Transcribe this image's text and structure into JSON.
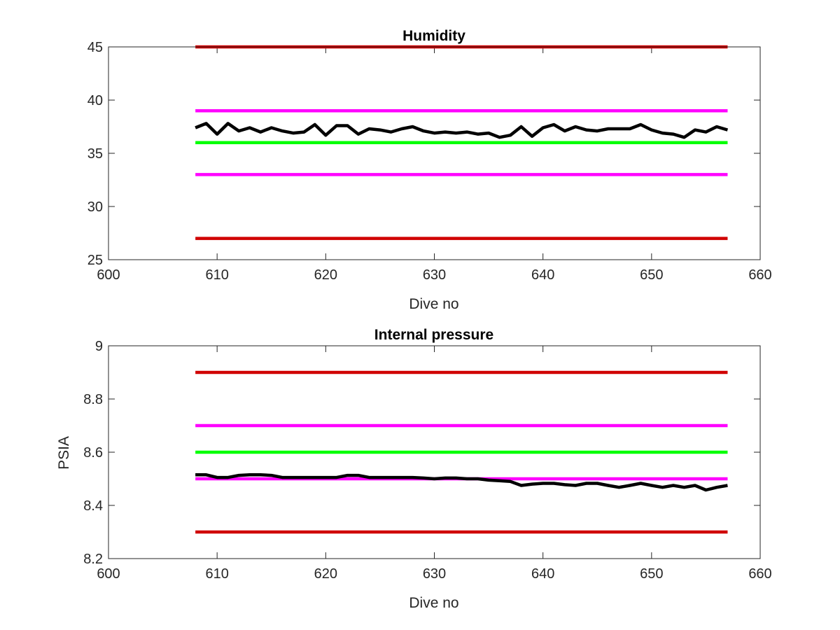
{
  "chart_data": [
    {
      "type": "line",
      "title": "Humidity",
      "xlabel": "Dive no",
      "ylabel": "",
      "xlim": [
        600,
        660
      ],
      "ylim": [
        25,
        45
      ],
      "xticks": [
        600,
        610,
        620,
        630,
        640,
        650,
        660
      ],
      "yticks": [
        25,
        30,
        35,
        40,
        45
      ],
      "xtick_labels": [
        "600",
        "610",
        "620",
        "630",
        "640",
        "650",
        "660"
      ],
      "ytick_labels": [
        "25",
        "30",
        "35",
        "40",
        "45"
      ],
      "grid": false,
      "colors": {
        "red": "#d00000",
        "magenta": "#ff00ff",
        "green": "#00ff00",
        "black": "#000000"
      },
      "thresholds": [
        {
          "value": 45,
          "x": [
            608,
            657
          ],
          "color": "#d00000"
        },
        {
          "value": 39,
          "x": [
            608,
            657
          ],
          "color": "#ff00ff"
        },
        {
          "value": 36,
          "x": [
            608,
            657
          ],
          "color": "#00ff00"
        },
        {
          "value": 33,
          "x": [
            608,
            657
          ],
          "color": "#ff00ff"
        },
        {
          "value": 27,
          "x": [
            608,
            657
          ],
          "color": "#d00000"
        }
      ],
      "series": [
        {
          "color": "#000000",
          "x": [
            608,
            609,
            610,
            611,
            612,
            613,
            614,
            615,
            616,
            617,
            618,
            619,
            620,
            621,
            622,
            623,
            624,
            625,
            626,
            627,
            628,
            629,
            630,
            631,
            632,
            633,
            634,
            635,
            636,
            637,
            638,
            639,
            640,
            641,
            642,
            643,
            644,
            645,
            646,
            647,
            648,
            649,
            650,
            651,
            652,
            653,
            654,
            655,
            656,
            657
          ],
          "y": [
            37.4,
            37.8,
            36.8,
            37.8,
            37.1,
            37.4,
            37.0,
            37.4,
            37.1,
            36.9,
            37.0,
            37.7,
            36.7,
            37.6,
            37.6,
            36.8,
            37.3,
            37.2,
            37.0,
            37.3,
            37.5,
            37.1,
            36.9,
            37.0,
            36.9,
            37.0,
            36.8,
            36.9,
            36.5,
            36.7,
            37.5,
            36.6,
            37.4,
            37.7,
            37.1,
            37.5,
            37.2,
            37.1,
            37.3,
            37.3,
            37.3,
            37.7,
            37.2,
            36.9,
            36.8,
            36.5,
            37.2,
            37.0,
            37.5,
            37.2
          ]
        }
      ]
    },
    {
      "type": "line",
      "title": "Internal pressure",
      "xlabel": "Dive no",
      "ylabel": "PSIA",
      "xlim": [
        600,
        660
      ],
      "ylim": [
        8.2,
        9.0
      ],
      "xticks": [
        600,
        610,
        620,
        630,
        640,
        650,
        660
      ],
      "yticks": [
        8.2,
        8.4,
        8.6,
        8.8,
        9.0
      ],
      "xtick_labels": [
        "600",
        "610",
        "620",
        "630",
        "640",
        "650",
        "660"
      ],
      "ytick_labels": [
        "8.2",
        "8.4",
        "8.6",
        "8.8",
        "9"
      ],
      "grid": false,
      "colors": {
        "red": "#d00000",
        "magenta": "#ff00ff",
        "green": "#00ff00",
        "black": "#000000"
      },
      "thresholds": [
        {
          "value": 8.9,
          "x": [
            608,
            657
          ],
          "color": "#d00000"
        },
        {
          "value": 8.7,
          "x": [
            608,
            657
          ],
          "color": "#ff00ff"
        },
        {
          "value": 8.6,
          "x": [
            608,
            657
          ],
          "color": "#00ff00"
        },
        {
          "value": 8.5,
          "x": [
            608,
            657
          ],
          "color": "#ff00ff"
        },
        {
          "value": 8.3,
          "x": [
            608,
            657
          ],
          "color": "#d00000"
        }
      ],
      "series": [
        {
          "color": "#000000",
          "x": [
            608,
            609,
            610,
            611,
            612,
            613,
            614,
            615,
            616,
            617,
            618,
            619,
            620,
            621,
            622,
            623,
            624,
            625,
            626,
            627,
            628,
            629,
            630,
            631,
            632,
            633,
            634,
            635,
            636,
            637,
            638,
            639,
            640,
            641,
            642,
            643,
            644,
            645,
            646,
            647,
            648,
            649,
            650,
            651,
            652,
            653,
            654,
            655,
            656,
            657
          ],
          "y": [
            8.515,
            8.515,
            8.505,
            8.505,
            8.513,
            8.515,
            8.515,
            8.513,
            8.505,
            8.505,
            8.505,
            8.505,
            8.505,
            8.505,
            8.513,
            8.513,
            8.505,
            8.505,
            8.505,
            8.505,
            8.505,
            8.503,
            8.5,
            8.503,
            8.503,
            8.5,
            8.5,
            8.495,
            8.493,
            8.49,
            8.475,
            8.48,
            8.483,
            8.483,
            8.478,
            8.475,
            8.483,
            8.483,
            8.475,
            8.468,
            8.475,
            8.483,
            8.475,
            8.468,
            8.475,
            8.468,
            8.475,
            8.458,
            8.468,
            8.475
          ]
        }
      ]
    }
  ]
}
